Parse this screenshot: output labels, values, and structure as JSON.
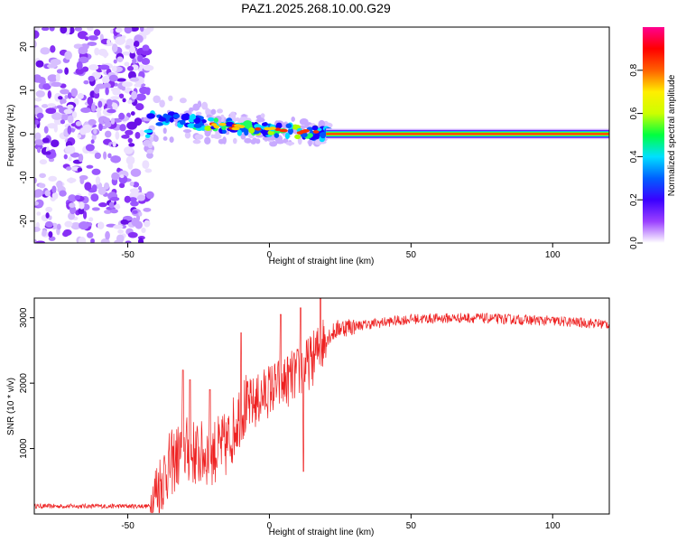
{
  "title": "PAZ1.2025.268.10.00.G29",
  "chart_data": [
    {
      "type": "heatmap",
      "xlabel": "Height of straight line (km)",
      "ylabel": "Frequency (Hz)",
      "xlim": [
        -83,
        120
      ],
      "ylim": [
        -25,
        24.5
      ],
      "x_ticks": [
        -50,
        0,
        50,
        100
      ],
      "y_ticks": [
        -20,
        -10,
        0,
        10,
        20
      ],
      "description_values": {
        "noise_region_x": [
          -83,
          -42
        ],
        "signal_path": [
          {
            "x": -42,
            "f": 3.5
          },
          {
            "x": -30,
            "f": 3.0
          },
          {
            "x": -20,
            "f": 2.0
          },
          {
            "x": -10,
            "f": 1.5
          },
          {
            "x": 0,
            "f": 1.0
          },
          {
            "x": 10,
            "f": 0.6
          },
          {
            "x": 20,
            "f": 0.1
          },
          {
            "x": 120,
            "f": 0.0
          }
        ]
      },
      "colorbar": {
        "label": "Normalized spectral amplitude",
        "range": [
          0,
          1
        ],
        "ticks": [
          0.0,
          0.2,
          0.4,
          0.6,
          0.8
        ],
        "tick_labels": [
          "0.0",
          "0.2",
          "0.4",
          "0.6",
          "0.8"
        ],
        "colors": [
          "#ffffff",
          "#9a40ff",
          "#3a00ff",
          "#0060ff",
          "#00e0ff",
          "#00ff40",
          "#ccff00",
          "#ffee00",
          "#ff6000",
          "#ff0000",
          "#ff0090"
        ]
      }
    },
    {
      "type": "line",
      "xlabel": "Height of straight line (km)",
      "ylabel": "SNR (10 * v/v)",
      "xlim": [
        -83,
        120
      ],
      "ylim": [
        0,
        3300
      ],
      "x_ticks": [
        -50,
        0,
        50,
        100
      ],
      "y_ticks": [
        1000,
        2000,
        3000
      ],
      "color": "#ee2222",
      "anchors": [
        {
          "x": -83,
          "y": 120
        },
        {
          "x": -42,
          "y": 120
        },
        {
          "x": -40,
          "y": 350
        },
        {
          "x": -36,
          "y": 700
        },
        {
          "x": -30,
          "y": 1000
        },
        {
          "x": -25,
          "y": 900
        },
        {
          "x": -20,
          "y": 950
        },
        {
          "x": -15,
          "y": 1050
        },
        {
          "x": -10,
          "y": 1600
        },
        {
          "x": -5,
          "y": 1700
        },
        {
          "x": 0,
          "y": 1900
        },
        {
          "x": 5,
          "y": 2000
        },
        {
          "x": 10,
          "y": 2150
        },
        {
          "x": 15,
          "y": 2350
        },
        {
          "x": 20,
          "y": 2700
        },
        {
          "x": 25,
          "y": 2850
        },
        {
          "x": 35,
          "y": 2900
        },
        {
          "x": 50,
          "y": 2980
        },
        {
          "x": 70,
          "y": 3000
        },
        {
          "x": 100,
          "y": 2950
        },
        {
          "x": 120,
          "y": 2900
        }
      ],
      "spikes": [
        {
          "x": -30.5,
          "y": 2200
        },
        {
          "x": -28,
          "y": 2050
        },
        {
          "x": -21,
          "y": 1900
        },
        {
          "x": -10,
          "y": 2770
        },
        {
          "x": 4,
          "y": 3050
        },
        {
          "x": 11,
          "y": 3150
        },
        {
          "x": 18,
          "y": 3290
        },
        {
          "x": 12,
          "y": 650
        }
      ]
    }
  ]
}
